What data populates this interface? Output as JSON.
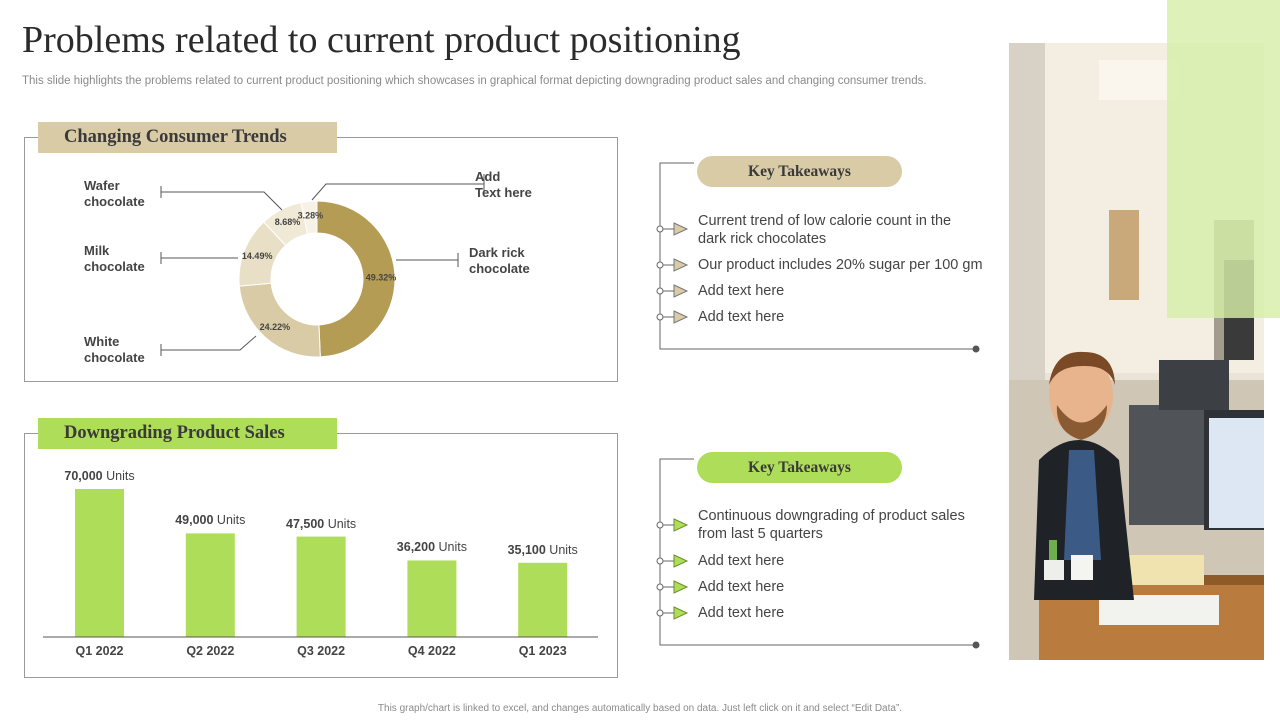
{
  "title": "Problems related to current product positioning",
  "subtitle": "This slide highlights the problems related to current product positioning which showcases in graphical format depicting downgrading product sales and changing consumer trends.",
  "footer": "This graph/chart is linked to excel, and changes automatically based on data. Just left click on it and select “Edit Data”.",
  "colors": {
    "tan": "#d9cba6",
    "gold": "#b59c55",
    "green": "#aedd5a",
    "lightgreen": "#d6eea8",
    "line": "#555555"
  },
  "pie_panel": {
    "heading": "Changing Consumer Trends"
  },
  "pie_labels": {
    "wafer": [
      "Wafer",
      "chocolate"
    ],
    "milk": [
      "Milk",
      "chocolate"
    ],
    "white": [
      "White",
      "chocolate"
    ],
    "add": [
      "Add",
      "Text here"
    ],
    "dark": [
      "Dark rick",
      "chocolate"
    ]
  },
  "bar_panel": {
    "heading": "Downgrading Product Sales",
    "unit": "Units"
  },
  "takeaways_top": {
    "heading": "Key Takeaways",
    "items": [
      "Current trend of low calorie count in the",
      "dark rick chocolates",
      "Our product includes 20% sugar per 100 gm",
      "Add text here",
      "Add text here"
    ]
  },
  "takeaways_bottom": {
    "heading": "Key Takeaways",
    "items": [
      "Continuous downgrading of product sales",
      "from last 5 quarters",
      "Add text here",
      "Add text here",
      "Add text here"
    ]
  },
  "chart_data": [
    {
      "type": "pie",
      "title": "Changing Consumer Trends",
      "slices": [
        {
          "name": "Dark rick chocolate",
          "value": 49.32,
          "label": "49.32%"
        },
        {
          "name": "White chocolate",
          "value": 24.22,
          "label": "24.22%"
        },
        {
          "name": "Milk chocolate",
          "value": 14.49,
          "label": "14.49%"
        },
        {
          "name": "Wafer chocolate",
          "value": 8.68,
          "label": "8.68%"
        },
        {
          "name": "Add Text here",
          "value": 3.28,
          "label": "3.28%"
        }
      ]
    },
    {
      "type": "bar",
      "title": "Downgrading Product Sales",
      "categories": [
        "Q1 2022",
        "Q2 2022",
        "Q3 2022",
        "Q4 2022",
        "Q1 2023"
      ],
      "values": [
        70000,
        49000,
        47500,
        36200,
        35100
      ],
      "value_labels": [
        "70,000",
        "49,000",
        "47,500",
        "36,200",
        "35,100"
      ],
      "unit": "Units",
      "ylim": [
        0,
        70000
      ]
    }
  ]
}
